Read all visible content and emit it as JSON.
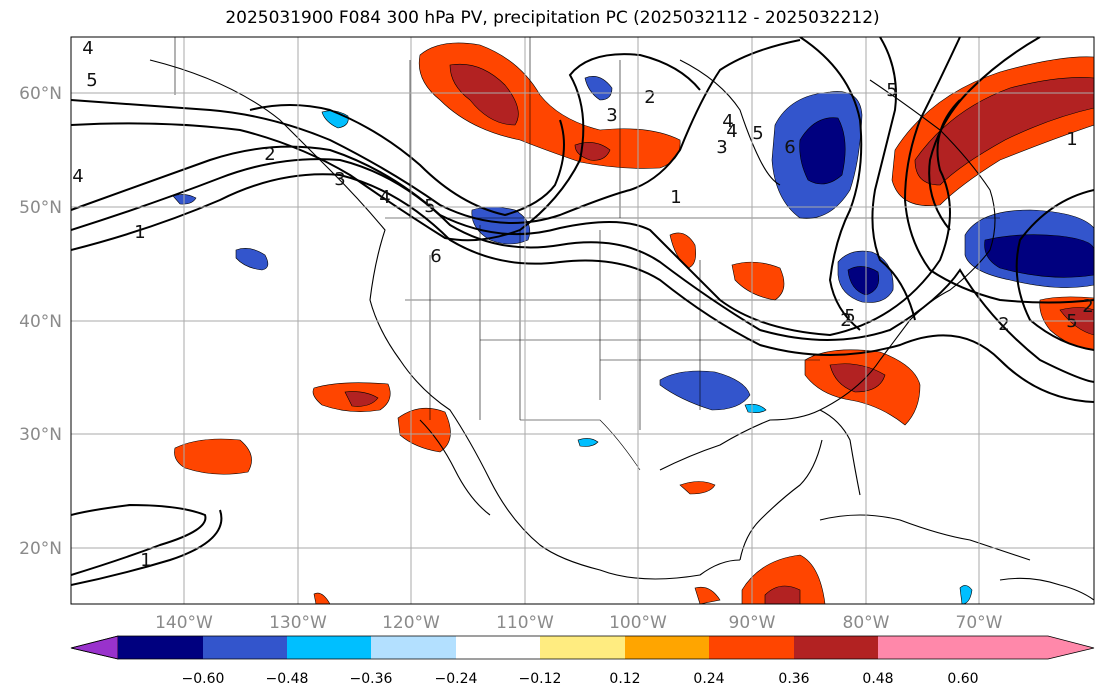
{
  "title": "2025031900 F084 300 hPa PV, precipitation PC (2025032112 - 2025032212)",
  "latitude_labels": [
    "60°N",
    "50°N",
    "40°N",
    "30°N",
    "20°N"
  ],
  "longitude_labels": [
    "140°W",
    "130°W",
    "120°W",
    "110°W",
    "100°W",
    "90°W",
    "80°W",
    "70°W"
  ],
  "colorbar": {
    "tick_labels": [
      "−0.60",
      "−0.48",
      "−0.36",
      "−0.24",
      "−0.12",
      "0.12",
      "0.24",
      "0.36",
      "0.48",
      "0.60"
    ],
    "colors": [
      "#9932cc",
      "#00007f",
      "#3355cc",
      "#00bfff",
      "#b3e0ff",
      "#ffffff",
      "#ffec80",
      "#ffa500",
      "#ff4500",
      "#b22222",
      "#ff88aa"
    ]
  },
  "contour_labels": [
    "4",
    "5",
    "1",
    "2",
    "3",
    "4",
    "5",
    "6",
    "2",
    "3",
    "4",
    "5",
    "6",
    "1",
    "2",
    "5",
    "2",
    "3",
    "4",
    "5",
    "1",
    "2",
    "5",
    "1",
    "4"
  ],
  "map_extent": {
    "lon_min": -150,
    "lon_max": -60,
    "lat_min": 15,
    "lat_max": 65
  }
}
